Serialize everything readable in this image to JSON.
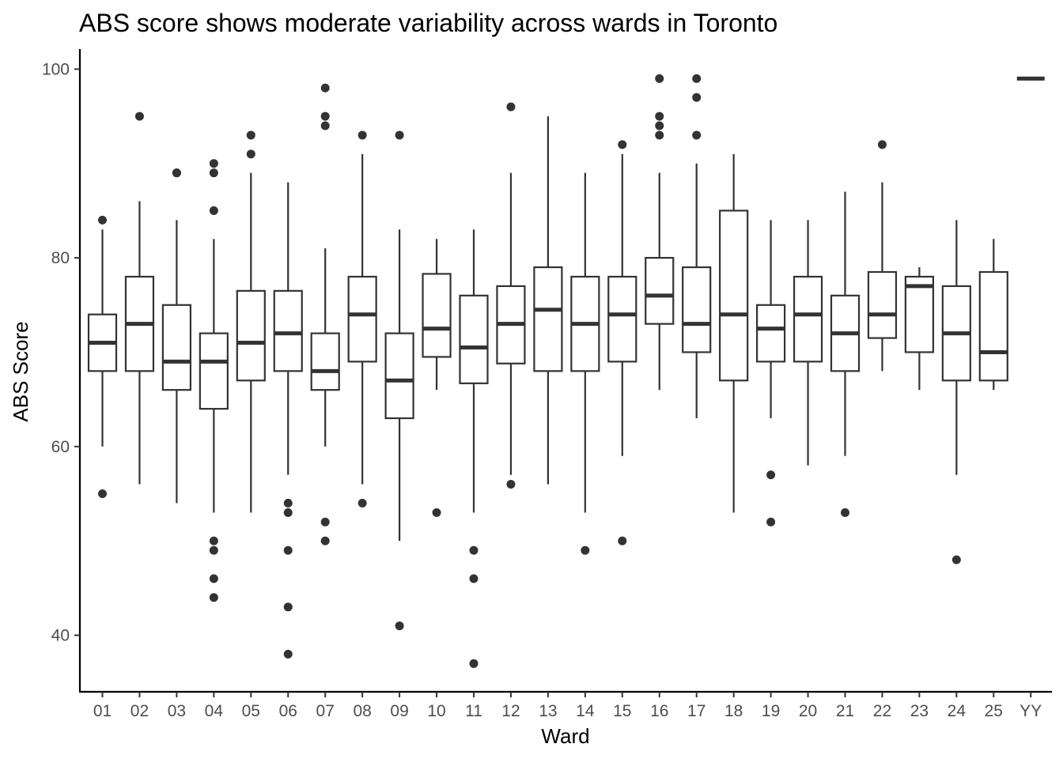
{
  "chart_data": {
    "type": "boxplot",
    "title": "ABS score shows moderate variability across wards in Toronto",
    "xlabel": "Ward",
    "ylabel": "ABS Score",
    "ylim": [
      34,
      102
    ],
    "yticks": [
      40,
      60,
      80,
      100
    ],
    "grid": false,
    "legend": "none",
    "colors": {
      "box_stroke": "#333333",
      "box_fill": "#ffffff",
      "axis": "#000000",
      "tick_text": "#4d4d4d"
    },
    "categories": [
      "01",
      "02",
      "03",
      "04",
      "05",
      "06",
      "07",
      "08",
      "09",
      "10",
      "11",
      "12",
      "13",
      "14",
      "15",
      "16",
      "17",
      "18",
      "19",
      "20",
      "21",
      "22",
      "23",
      "24",
      "25",
      "YY"
    ],
    "boxes": [
      {
        "ward": "01",
        "whisker_low": 60,
        "q1": 68,
        "median": 71,
        "q3": 74,
        "whisker_high": 83,
        "outliers": [
          84,
          55
        ]
      },
      {
        "ward": "02",
        "whisker_low": 56,
        "q1": 68,
        "median": 73,
        "q3": 78,
        "whisker_high": 86,
        "outliers": [
          95
        ]
      },
      {
        "ward": "03",
        "whisker_low": 54,
        "q1": 66,
        "median": 69,
        "q3": 75,
        "whisker_high": 84,
        "outliers": [
          89,
          89
        ]
      },
      {
        "ward": "04",
        "whisker_low": 53,
        "q1": 64,
        "median": 69,
        "q3": 72,
        "whisker_high": 82,
        "outliers": [
          90,
          89,
          85,
          50,
          49,
          46,
          44
        ]
      },
      {
        "ward": "05",
        "whisker_low": 53,
        "q1": 67,
        "median": 71,
        "q3": 76.5,
        "whisker_high": 89,
        "outliers": [
          93,
          91
        ]
      },
      {
        "ward": "06",
        "whisker_low": 57,
        "q1": 68,
        "median": 72,
        "q3": 76.5,
        "whisker_high": 88,
        "outliers": [
          54,
          53,
          49,
          43,
          38
        ]
      },
      {
        "ward": "07",
        "whisker_low": 60,
        "q1": 66,
        "median": 68,
        "q3": 72,
        "whisker_high": 81,
        "outliers": [
          98,
          95,
          94,
          52,
          50
        ]
      },
      {
        "ward": "08",
        "whisker_low": 56,
        "q1": 69,
        "median": 74,
        "q3": 78,
        "whisker_high": 91,
        "outliers": [
          93,
          54
        ]
      },
      {
        "ward": "09",
        "whisker_low": 50,
        "q1": 63,
        "median": 67,
        "q3": 72,
        "whisker_high": 83,
        "outliers": [
          93,
          41
        ]
      },
      {
        "ward": "10",
        "whisker_low": 66,
        "q1": 69.5,
        "median": 72.5,
        "q3": 78.3,
        "whisker_high": 82,
        "outliers": [
          53
        ]
      },
      {
        "ward": "11",
        "whisker_low": 53,
        "q1": 66.7,
        "median": 70.5,
        "q3": 76,
        "whisker_high": 83,
        "outliers": [
          49,
          46,
          37
        ]
      },
      {
        "ward": "12",
        "whisker_low": 57,
        "q1": 68.8,
        "median": 73,
        "q3": 77,
        "whisker_high": 89,
        "outliers": [
          96,
          56
        ]
      },
      {
        "ward": "13",
        "whisker_low": 56,
        "q1": 68,
        "median": 74.5,
        "q3": 79,
        "whisker_high": 95,
        "outliers": []
      },
      {
        "ward": "14",
        "whisker_low": 53,
        "q1": 68,
        "median": 73,
        "q3": 78,
        "whisker_high": 89,
        "outliers": [
          49
        ]
      },
      {
        "ward": "15",
        "whisker_low": 59,
        "q1": 69,
        "median": 74,
        "q3": 78,
        "whisker_high": 91,
        "outliers": [
          92,
          50
        ]
      },
      {
        "ward": "16",
        "whisker_low": 66,
        "q1": 73,
        "median": 76,
        "q3": 80,
        "whisker_high": 89,
        "outliers": [
          99,
          95,
          94,
          93
        ]
      },
      {
        "ward": "17",
        "whisker_low": 63,
        "q1": 70,
        "median": 73,
        "q3": 79,
        "whisker_high": 90,
        "outliers": [
          99,
          97,
          93
        ]
      },
      {
        "ward": "18",
        "whisker_low": 53,
        "q1": 67,
        "median": 74,
        "q3": 85,
        "whisker_high": 91,
        "outliers": []
      },
      {
        "ward": "19",
        "whisker_low": 63,
        "q1": 69,
        "median": 72.5,
        "q3": 75,
        "whisker_high": 84,
        "outliers": [
          57,
          52
        ]
      },
      {
        "ward": "20",
        "whisker_low": 58,
        "q1": 69,
        "median": 74,
        "q3": 78,
        "whisker_high": 84,
        "outliers": []
      },
      {
        "ward": "21",
        "whisker_low": 59,
        "q1": 68,
        "median": 72,
        "q3": 76,
        "whisker_high": 87,
        "outliers": [
          53
        ]
      },
      {
        "ward": "22",
        "whisker_low": 68,
        "q1": 71.5,
        "median": 74,
        "q3": 78.5,
        "whisker_high": 88,
        "outliers": [
          92
        ]
      },
      {
        "ward": "23",
        "whisker_low": 66,
        "q1": 70,
        "median": 77,
        "q3": 78,
        "whisker_high": 79,
        "outliers": []
      },
      {
        "ward": "24",
        "whisker_low": 57,
        "q1": 67,
        "median": 72,
        "q3": 77,
        "whisker_high": 84,
        "outliers": [
          48
        ]
      },
      {
        "ward": "25",
        "whisker_low": 66,
        "q1": 67,
        "median": 70,
        "q3": 78.5,
        "whisker_high": 82,
        "outliers": []
      },
      {
        "ward": "YY",
        "whisker_low": 99,
        "q1": 99,
        "median": 99,
        "q3": 99,
        "whisker_high": 99,
        "outliers": []
      }
    ]
  }
}
